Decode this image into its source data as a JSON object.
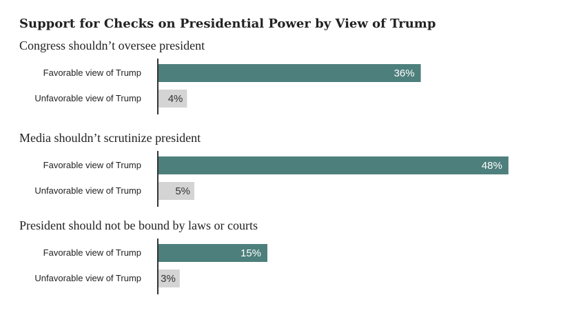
{
  "chart_data": {
    "type": "bar",
    "orientation": "horizontal",
    "title": "Support for Checks on Presidential Power by View of Trump",
    "xlim": [
      0,
      48
    ],
    "grid": false,
    "colors": {
      "Favorable view of Trump": "#4d7f7c",
      "Unfavorable view of Trump": "#d4d4d4"
    },
    "panels": [
      {
        "title": "Congress shouldn’t oversee president",
        "bars": [
          {
            "category": "Favorable view of Trump",
            "value": 36,
            "label": "36%"
          },
          {
            "category": "Unfavorable view of Trump",
            "value": 4,
            "label": "4%"
          }
        ]
      },
      {
        "title": "Media shouldn’t scrutinize president",
        "bars": [
          {
            "category": "Favorable view of Trump",
            "value": 48,
            "label": "48%"
          },
          {
            "category": "Unfavorable view of Trump",
            "value": 5,
            "label": "5%"
          }
        ]
      },
      {
        "title": "President should not be bound by laws or courts",
        "bars": [
          {
            "category": "Favorable view of Trump",
            "value": 15,
            "label": "15%"
          },
          {
            "category": "Unfavorable view of Trump",
            "value": 3,
            "label": "3%"
          }
        ]
      }
    ]
  }
}
